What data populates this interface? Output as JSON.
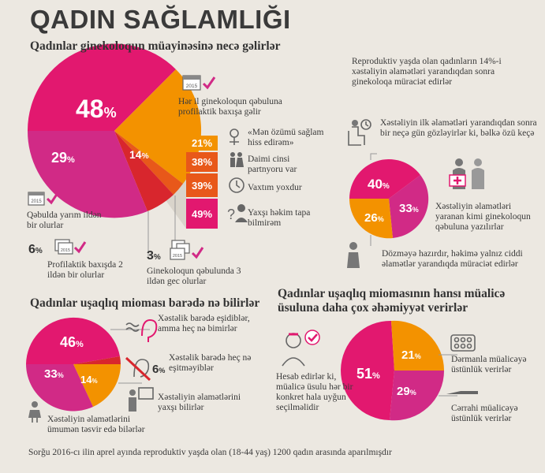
{
  "title": "QADIN SAĞLAMLIĞI",
  "section1": {
    "heading": "Qadınlar ginekoloqun müayinəsinə necə gəlirlər",
    "label_48": "Hər il ginekoloqun qəbuluna profilaktik baxışa gəlir",
    "label_29": "Qəbulda yarım ildən bir olurlar",
    "label_6": "Profilaktik baxışda 2 ildən bir olurlar",
    "label_3": "Ginekoloqun qəbulunda 3 ildən gec olurlar",
    "reasons": [
      {
        "value": "21%",
        "text": "«Mən özümü sağlam hiss edirəm»"
      },
      {
        "value": "38%",
        "text": "Daimi cinsi partnyoru var"
      },
      {
        "value": "39%",
        "text": "Vaxtım yoxdur"
      },
      {
        "value": "49%",
        "text": "Yaxşı həkim tapa bilmirəm"
      }
    ]
  },
  "section2": {
    "intro": "Reproduktiv yaşda olan qadınların 14%-i xəstəliyin əlamətləri yarandıqdan sonra ginekoloqa müraciət edirlər",
    "label_40": "Xəstəliyin ilk əlamətləri yarandıqdan sonra bir neçə gün gözləyirlər ki, bəlkə özü keçə",
    "label_33": "Xəstəliyin əlamətləri yaranan kimi ginekoloqun qəbuluna yazılırlar",
    "label_26": "Dözməyə hazırdır, həkimə yalnız ciddi əlamətlər yarandıqda müraciət edirlər"
  },
  "section3": {
    "heading": "Qadınlar uşaqlıq mioması barədə nə bilirlər",
    "label_46": "Xəstəlik barədə eşidiblər, amma heç nə bimirlər",
    "label_6": "Xəstəlik barədə heç nə eşitməyiblər",
    "label_14": "Xəstəliyin əlamətlərini yaxşı bilirlər",
    "label_33": "Xəstəliyin əlamətlərini ümumən təsvir edə bilərlər"
  },
  "section4": {
    "heading_line1": "Qadınlar uşaqlıq miomasının hansı müalicə",
    "heading_line2": "üsuluna daha çox əhəmiyyət verirlər",
    "label_51": "Hesab edirlər ki, müalicə üsulu hər bir konkret hala uyğun seçilməlidir",
    "label_21": "Dərmanla müalicəyə üstünlük verirlər",
    "label_29": "Cərrahi müalicəyə üstünlük verirlər"
  },
  "footnote": "Sorğu 2016-cı ilin aprel ayında reproduktiv yaşda olan (18-44 yaş) 1200 qadın arasında aparılmışdır",
  "calendar_text": "2015",
  "colors": {
    "pink": "#e2186f",
    "magenta": "#d12a86",
    "orange": "#f39200",
    "deep_orange": "#e8581a",
    "red": "#d8262d",
    "grey": "#888888"
  },
  "chart_data": [
    {
      "type": "pie",
      "title": "Qadınlar ginekoloqun müayinəsinə necə gəlirlər",
      "slices": [
        {
          "label": "Hər il ginekoloqun qəbuluna profilaktik baxışa gəlir",
          "value": 48
        },
        {
          "label": "Qəbulda yarım ildən bir olurlar",
          "value": 29
        },
        {
          "label": "Profilaktik baxışda 2 ildən bir olurlar",
          "value": 6
        },
        {
          "label": "Ginekoloqun qəbulunda 3 ildən gec olurlar",
          "value": 3
        },
        {
          "label": "",
          "value": 14
        }
      ]
    },
    {
      "type": "bar",
      "categories": [
        "«Mən özümü sağlam hiss edirəm»",
        "Daimi cinsi partnyoru var",
        "Vaxtım yoxdur",
        "Yaxşı həkim tapa bilmirəm"
      ],
      "values": [
        21,
        38,
        39,
        49
      ]
    },
    {
      "type": "pie",
      "slices": [
        {
          "label": "Xəstəliyin ilk əlamətləri yarandıqdan sonra bir neçə gün gözləyirlər ki, bəlkə özü keçə",
          "value": 40
        },
        {
          "label": "Xəstəliyin əlamətləri yaranan kimi ginekoloqun qəbuluna yazılırlar",
          "value": 33
        },
        {
          "label": "Dözməyə hazırdır, həkimə yalnız ciddi əlamətlər yarandıqda müraciət edirlər",
          "value": 26
        }
      ]
    },
    {
      "type": "pie",
      "title": "Qadınlar uşaqlıq mioması barədə nə bilirlər",
      "slices": [
        {
          "label": "Xəstəlik barədə eşidiblər, amma heç nə bimirlər",
          "value": 46
        },
        {
          "label": "Xəstəliyin əlamətlərini yaxşı bilirlər",
          "value": 14
        },
        {
          "label": "Xəstəliyin əlamətlərini ümumən təsvir edə bilərlər",
          "value": 33
        },
        {
          "label": "Xəstəlik barədə heç nə eşitməyiblər",
          "value": 6
        }
      ]
    },
    {
      "type": "pie",
      "title": "Qadınlar uşaqlıq miomasının hansı müalicə üsuluna daha çox əhəmiyyət verirlər",
      "slices": [
        {
          "label": "Hesab edirlər ki, müalicə üsulu hər bir konkret hala uyğun seçilməlidir",
          "value": 51
        },
        {
          "label": "Dərmanla müalicəyə üstünlük verirlər",
          "value": 21
        },
        {
          "label": "Cərrahi müalicəyə üstünlük verirlər",
          "value": 29
        }
      ]
    }
  ]
}
